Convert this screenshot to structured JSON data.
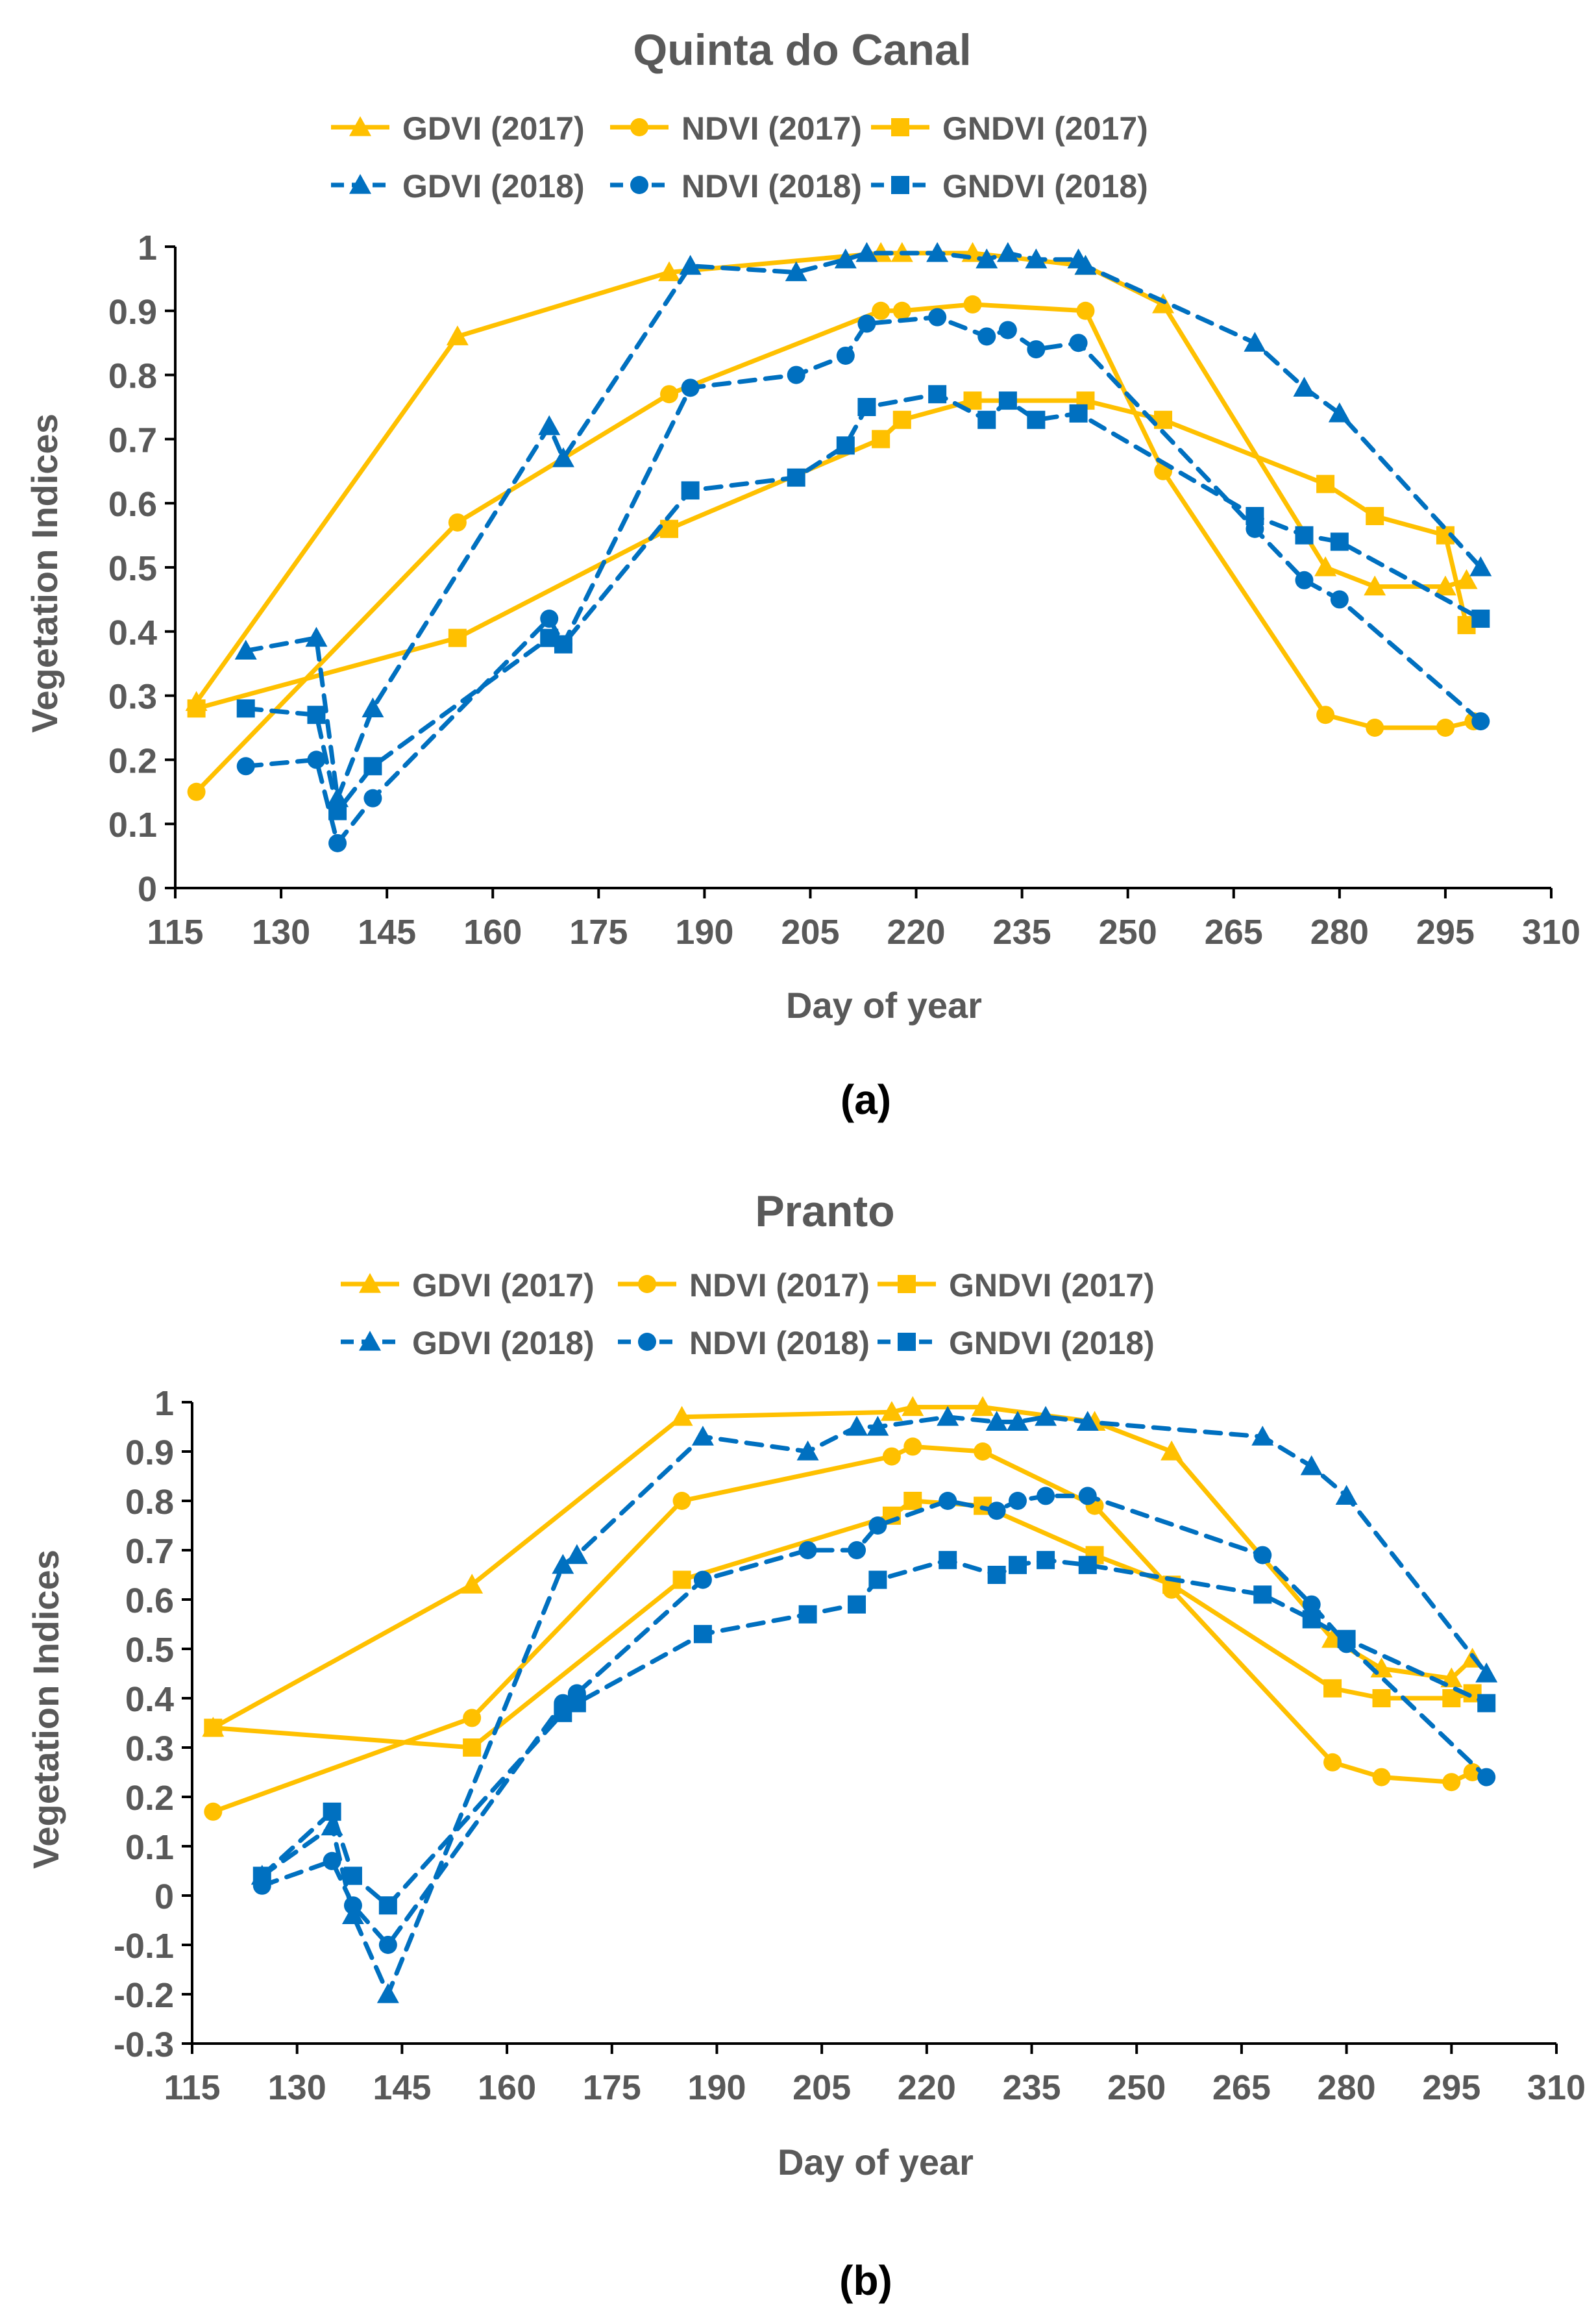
{
  "colors": {
    "y2017": "#FFC000",
    "y2018": "#0070C0",
    "text": "#595959",
    "axis": "#000000"
  },
  "chart_data": [
    {
      "type": "line",
      "title": "Quinta do Canal",
      "panel_label": "(a)",
      "xlabel": "Day of year",
      "ylabel": "Vegetation Indices",
      "xlim": [
        115,
        310
      ],
      "ylim": [
        0,
        1
      ],
      "xticks": [
        115,
        130,
        145,
        160,
        175,
        190,
        205,
        220,
        235,
        250,
        265,
        280,
        295,
        310
      ],
      "yticks": [
        0,
        0.1,
        0.2,
        0.3,
        0.4,
        0.5,
        0.6,
        0.7,
        0.8,
        0.9,
        1
      ],
      "ytick_labels": [
        "0",
        "0.1",
        "0.2",
        "0.3",
        "0.4",
        "0.5",
        "0.6",
        "0.7",
        "0.8",
        "0.9",
        "1"
      ],
      "xtick_labels": [
        "115",
        "130",
        "145",
        "160",
        "175",
        "190",
        "205",
        "220",
        "235",
        "250",
        "265",
        "280",
        "295",
        "310"
      ],
      "grid": false,
      "legend_position": "top",
      "series": [
        {
          "name": "GDVI (2017)",
          "color": "#FFC000",
          "dash": false,
          "marker": "triangle",
          "x": [
            118,
            155,
            185,
            215,
            218,
            228,
            244,
            255,
            278,
            285,
            295,
            298
          ],
          "y": [
            0.29,
            0.86,
            0.96,
            0.99,
            0.99,
            0.99,
            0.97,
            0.91,
            0.5,
            0.47,
            0.47,
            0.48
          ]
        },
        {
          "name": "NDVI (2017)",
          "color": "#FFC000",
          "dash": false,
          "marker": "circle",
          "x": [
            118,
            155,
            185,
            215,
            218,
            228,
            244,
            255,
            278,
            285,
            295,
            299
          ],
          "y": [
            0.15,
            0.57,
            0.77,
            0.9,
            0.9,
            0.91,
            0.9,
            0.65,
            0.27,
            0.25,
            0.25,
            0.26
          ]
        },
        {
          "name": "GNDVI (2017)",
          "color": "#FFC000",
          "dash": false,
          "marker": "square",
          "x": [
            118,
            155,
            185,
            215,
            218,
            228,
            244,
            255,
            278,
            285,
            295,
            298
          ],
          "y": [
            0.28,
            0.39,
            0.56,
            0.7,
            0.73,
            0.76,
            0.76,
            0.73,
            0.63,
            0.58,
            0.55,
            0.41
          ]
        },
        {
          "name": "GDVI (2018)",
          "color": "#0070C0",
          "dash": true,
          "marker": "triangle",
          "x": [
            125,
            135,
            138,
            143,
            168,
            170,
            188,
            203,
            210,
            213,
            223,
            230,
            233,
            237,
            243,
            244,
            268,
            275,
            280,
            300
          ],
          "y": [
            0.37,
            0.39,
            0.14,
            0.28,
            0.72,
            0.67,
            0.97,
            0.96,
            0.98,
            0.99,
            0.99,
            0.98,
            0.99,
            0.98,
            0.98,
            0.97,
            0.85,
            0.78,
            0.74,
            0.5
          ]
        },
        {
          "name": "NDVI (2018)",
          "color": "#0070C0",
          "dash": true,
          "marker": "circle",
          "x": [
            125,
            135,
            138,
            143,
            168,
            170,
            188,
            203,
            210,
            213,
            223,
            230,
            233,
            237,
            243,
            268,
            275,
            280,
            300
          ],
          "y": [
            0.19,
            0.2,
            0.07,
            0.14,
            0.42,
            0.38,
            0.78,
            0.8,
            0.83,
            0.88,
            0.89,
            0.86,
            0.87,
            0.84,
            0.85,
            0.56,
            0.48,
            0.45,
            0.26
          ]
        },
        {
          "name": "GNDVI (2018)",
          "color": "#0070C0",
          "dash": true,
          "marker": "square",
          "x": [
            125,
            135,
            138,
            143,
            168,
            170,
            188,
            203,
            210,
            213,
            223,
            230,
            233,
            237,
            243,
            268,
            275,
            280,
            300
          ],
          "y": [
            0.28,
            0.27,
            0.12,
            0.19,
            0.39,
            0.38,
            0.62,
            0.64,
            0.69,
            0.75,
            0.77,
            0.73,
            0.76,
            0.73,
            0.74,
            0.58,
            0.55,
            0.54,
            0.42
          ]
        }
      ]
    },
    {
      "type": "line",
      "title": "Pranto",
      "panel_label": "(b)",
      "xlabel": "Day of year",
      "ylabel": "Vegetation Indices",
      "xlim": [
        115,
        310
      ],
      "ylim": [
        -0.3,
        1
      ],
      "xticks": [
        115,
        130,
        145,
        160,
        175,
        190,
        205,
        220,
        235,
        250,
        265,
        280,
        295,
        310
      ],
      "yticks": [
        -0.3,
        -0.2,
        -0.1,
        0,
        0.1,
        0.2,
        0.3,
        0.4,
        0.5,
        0.6,
        0.7,
        0.8,
        0.9,
        1
      ],
      "ytick_labels": [
        "-0.3",
        "-0.2",
        "-0.1",
        "0",
        "0.1",
        "0.2",
        "0.3",
        "0.4",
        "0.5",
        "0.6",
        "0.7",
        "0.8",
        "0.9",
        "1"
      ],
      "xtick_labels": [
        "115",
        "130",
        "145",
        "160",
        "175",
        "190",
        "205",
        "220",
        "235",
        "250",
        "265",
        "280",
        "295",
        "310"
      ],
      "grid": false,
      "legend_position": "top",
      "series": [
        {
          "name": "GDVI (2017)",
          "color": "#FFC000",
          "dash": false,
          "marker": "triangle",
          "x": [
            118,
            155,
            185,
            215,
            218,
            228,
            244,
            255,
            278,
            285,
            295,
            298
          ],
          "y": [
            0.34,
            0.63,
            0.97,
            0.98,
            0.99,
            0.99,
            0.96,
            0.9,
            0.52,
            0.46,
            0.44,
            0.48
          ]
        },
        {
          "name": "NDVI (2017)",
          "color": "#FFC000",
          "dash": false,
          "marker": "circle",
          "x": [
            118,
            155,
            185,
            215,
            218,
            228,
            244,
            255,
            278,
            285,
            295,
            298
          ],
          "y": [
            0.17,
            0.36,
            0.8,
            0.89,
            0.91,
            0.9,
            0.79,
            0.62,
            0.27,
            0.24,
            0.23,
            0.25
          ]
        },
        {
          "name": "GNDVI (2017)",
          "color": "#FFC000",
          "dash": false,
          "marker": "square",
          "x": [
            118,
            155,
            185,
            215,
            218,
            228,
            244,
            255,
            278,
            285,
            295,
            298
          ],
          "y": [
            0.34,
            0.3,
            0.64,
            0.77,
            0.8,
            0.79,
            0.69,
            0.63,
            0.42,
            0.4,
            0.4,
            0.41
          ]
        },
        {
          "name": "GDVI (2018)",
          "color": "#0070C0",
          "dash": true,
          "marker": "triangle",
          "x": [
            125,
            135,
            138,
            143,
            168,
            170,
            188,
            203,
            210,
            213,
            223,
            230,
            233,
            237,
            243,
            268,
            275,
            280,
            300
          ],
          "y": [
            0.04,
            0.14,
            -0.04,
            -0.2,
            0.67,
            0.69,
            0.93,
            0.9,
            0.95,
            0.95,
            0.97,
            0.96,
            0.96,
            0.97,
            0.96,
            0.93,
            0.87,
            0.81,
            0.45
          ]
        },
        {
          "name": "NDVI (2018)",
          "color": "#0070C0",
          "dash": true,
          "marker": "circle",
          "x": [
            125,
            135,
            138,
            143,
            168,
            170,
            188,
            203,
            210,
            213,
            223,
            230,
            233,
            237,
            243,
            268,
            275,
            280,
            300
          ],
          "y": [
            0.02,
            0.07,
            -0.02,
            -0.1,
            0.39,
            0.41,
            0.64,
            0.7,
            0.7,
            0.75,
            0.8,
            0.78,
            0.8,
            0.81,
            0.81,
            0.69,
            0.59,
            0.51,
            0.24
          ]
        },
        {
          "name": "GNDVI (2018)",
          "color": "#0070C0",
          "dash": true,
          "marker": "square",
          "x": [
            125,
            135,
            138,
            143,
            168,
            170,
            188,
            203,
            210,
            213,
            223,
            230,
            233,
            237,
            243,
            268,
            275,
            280,
            300
          ],
          "y": [
            0.04,
            0.17,
            0.04,
            -0.02,
            0.37,
            0.39,
            0.53,
            0.57,
            0.59,
            0.64,
            0.68,
            0.65,
            0.67,
            0.68,
            0.67,
            0.61,
            0.56,
            0.52,
            0.39
          ]
        }
      ]
    }
  ]
}
